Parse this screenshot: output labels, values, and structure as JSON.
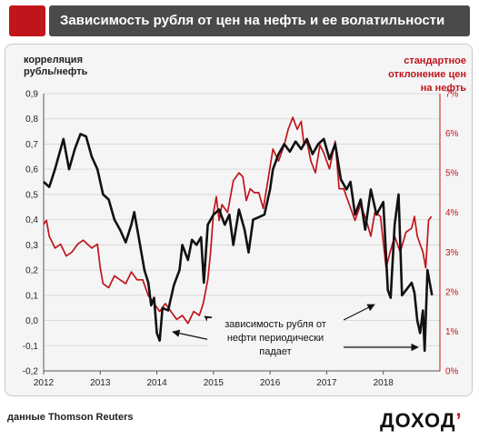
{
  "header": {
    "title": "Зависимость рубля от цен на нефть и ее волатильности"
  },
  "left_axis_label": [
    "корреляция",
    "рубль/нефть"
  ],
  "right_axis_label": [
    "стандартное",
    "отклонение цен",
    "на нефть"
  ],
  "annotation": [
    "зависимость  рубля от",
    "нефти периодически",
    "падает"
  ],
  "source": "данные Thomson Reuters",
  "logo": {
    "text": "ДОХОД",
    "mark": "’"
  },
  "colors": {
    "correlation": "#111111",
    "volatility": "#c0151b",
    "header_bg": "#4a4a4a",
    "accent": "#c0151b"
  },
  "chart_data": {
    "type": "line",
    "x_ticks": [
      "2012",
      "2013",
      "2014",
      "2015",
      "2016",
      "2017",
      "2018"
    ],
    "xlim": [
      2012,
      2019
    ],
    "left_axis": {
      "ylim": [
        -0.2,
        0.9
      ],
      "ticks": [
        "-0,2",
        "-0,1",
        "0,0",
        "0,1",
        "0,2",
        "0,3",
        "0,4",
        "0,5",
        "0,6",
        "0,7",
        "0,8",
        "0,9"
      ]
    },
    "right_axis": {
      "ylim": [
        0,
        7
      ],
      "ticks": [
        "0%",
        "1%",
        "2%",
        "3%",
        "4%",
        "5%",
        "6%",
        "7%"
      ]
    },
    "grid": "horizontal",
    "series": [
      {
        "axis": "left",
        "color": "#111111",
        "points": [
          [
            2012.0,
            0.55
          ],
          [
            2012.1,
            0.53
          ],
          [
            2012.2,
            0.6
          ],
          [
            2012.35,
            0.72
          ],
          [
            2012.45,
            0.6
          ],
          [
            2012.55,
            0.68
          ],
          [
            2012.65,
            0.74
          ],
          [
            2012.75,
            0.73
          ],
          [
            2012.85,
            0.65
          ],
          [
            2012.95,
            0.6
          ],
          [
            2013.05,
            0.5
          ],
          [
            2013.15,
            0.48
          ],
          [
            2013.25,
            0.4
          ],
          [
            2013.35,
            0.36
          ],
          [
            2013.45,
            0.31
          ],
          [
            2013.55,
            0.38
          ],
          [
            2013.6,
            0.43
          ],
          [
            2013.68,
            0.33
          ],
          [
            2013.78,
            0.2
          ],
          [
            2013.85,
            0.15
          ],
          [
            2013.9,
            0.06
          ],
          [
            2013.95,
            0.09
          ],
          [
            2014.0,
            -0.05
          ],
          [
            2014.05,
            -0.08
          ],
          [
            2014.1,
            0.05
          ],
          [
            2014.2,
            0.04
          ],
          [
            2014.3,
            0.14
          ],
          [
            2014.4,
            0.2
          ],
          [
            2014.45,
            0.3
          ],
          [
            2014.55,
            0.24
          ],
          [
            2014.62,
            0.32
          ],
          [
            2014.7,
            0.3
          ],
          [
            2014.78,
            0.33
          ],
          [
            2014.83,
            0.15
          ],
          [
            2014.9,
            0.38
          ],
          [
            2015.0,
            0.42
          ],
          [
            2015.1,
            0.44
          ],
          [
            2015.2,
            0.38
          ],
          [
            2015.28,
            0.42
          ],
          [
            2015.35,
            0.3
          ],
          [
            2015.45,
            0.44
          ],
          [
            2015.55,
            0.36
          ],
          [
            2015.62,
            0.27
          ],
          [
            2015.7,
            0.4
          ],
          [
            2015.8,
            0.41
          ],
          [
            2015.9,
            0.42
          ],
          [
            2016.0,
            0.52
          ],
          [
            2016.05,
            0.6
          ],
          [
            2016.15,
            0.66
          ],
          [
            2016.25,
            0.7
          ],
          [
            2016.35,
            0.67
          ],
          [
            2016.45,
            0.71
          ],
          [
            2016.55,
            0.68
          ],
          [
            2016.65,
            0.72
          ],
          [
            2016.75,
            0.66
          ],
          [
            2016.85,
            0.7
          ],
          [
            2016.95,
            0.72
          ],
          [
            2017.05,
            0.64
          ],
          [
            2017.15,
            0.7
          ],
          [
            2017.25,
            0.56
          ],
          [
            2017.35,
            0.52
          ],
          [
            2017.42,
            0.55
          ],
          [
            2017.5,
            0.42
          ],
          [
            2017.6,
            0.48
          ],
          [
            2017.68,
            0.36
          ],
          [
            2017.78,
            0.52
          ],
          [
            2017.88,
            0.42
          ],
          [
            2018.0,
            0.47
          ],
          [
            2018.08,
            0.12
          ],
          [
            2018.13,
            0.09
          ],
          [
            2018.2,
            0.38
          ],
          [
            2018.27,
            0.5
          ],
          [
            2018.33,
            0.1
          ],
          [
            2018.4,
            0.12
          ],
          [
            2018.5,
            0.15
          ],
          [
            2018.55,
            0.11
          ],
          [
            2018.6,
            0.0
          ],
          [
            2018.65,
            -0.05
          ],
          [
            2018.7,
            0.04
          ],
          [
            2018.73,
            -0.12
          ],
          [
            2018.78,
            0.2
          ],
          [
            2018.82,
            0.15
          ],
          [
            2018.86,
            0.1
          ]
        ]
      },
      {
        "axis": "right",
        "color": "#c0151b",
        "points": [
          [
            2012.0,
            3.7
          ],
          [
            2012.05,
            3.8
          ],
          [
            2012.1,
            3.4
          ],
          [
            2012.2,
            3.1
          ],
          [
            2012.3,
            3.2
          ],
          [
            2012.4,
            2.9
          ],
          [
            2012.5,
            3.0
          ],
          [
            2012.6,
            3.2
          ],
          [
            2012.7,
            3.3
          ],
          [
            2012.85,
            3.1
          ],
          [
            2012.95,
            3.2
          ],
          [
            2013.0,
            2.6
          ],
          [
            2013.05,
            2.2
          ],
          [
            2013.15,
            2.1
          ],
          [
            2013.25,
            2.4
          ],
          [
            2013.35,
            2.3
          ],
          [
            2013.45,
            2.2
          ],
          [
            2013.55,
            2.5
          ],
          [
            2013.65,
            2.3
          ],
          [
            2013.75,
            2.3
          ],
          [
            2013.85,
            1.9
          ],
          [
            2013.95,
            1.7
          ],
          [
            2014.05,
            1.5
          ],
          [
            2014.15,
            1.7
          ],
          [
            2014.25,
            1.5
          ],
          [
            2014.35,
            1.3
          ],
          [
            2014.45,
            1.4
          ],
          [
            2014.55,
            1.2
          ],
          [
            2014.65,
            1.5
          ],
          [
            2014.75,
            1.4
          ],
          [
            2014.82,
            1.7
          ],
          [
            2014.9,
            2.3
          ],
          [
            2014.95,
            3.0
          ],
          [
            2015.0,
            4.0
          ],
          [
            2015.05,
            4.4
          ],
          [
            2015.1,
            3.8
          ],
          [
            2015.15,
            4.2
          ],
          [
            2015.25,
            4.0
          ],
          [
            2015.35,
            4.8
          ],
          [
            2015.45,
            5.0
          ],
          [
            2015.52,
            4.9
          ],
          [
            2015.58,
            4.3
          ],
          [
            2015.65,
            4.6
          ],
          [
            2015.72,
            4.5
          ],
          [
            2015.8,
            4.5
          ],
          [
            2015.88,
            4.1
          ],
          [
            2015.95,
            4.7
          ],
          [
            2016.05,
            5.6
          ],
          [
            2016.15,
            5.3
          ],
          [
            2016.25,
            5.7
          ],
          [
            2016.32,
            6.1
          ],
          [
            2016.4,
            6.4
          ],
          [
            2016.48,
            6.1
          ],
          [
            2016.55,
            6.3
          ],
          [
            2016.6,
            5.7
          ],
          [
            2016.65,
            5.8
          ],
          [
            2016.72,
            5.3
          ],
          [
            2016.8,
            5.0
          ],
          [
            2016.88,
            5.7
          ],
          [
            2016.95,
            5.5
          ],
          [
            2017.05,
            5.1
          ],
          [
            2017.15,
            5.8
          ],
          [
            2017.22,
            4.6
          ],
          [
            2017.3,
            4.6
          ],
          [
            2017.4,
            4.2
          ],
          [
            2017.5,
            3.8
          ],
          [
            2017.6,
            4.2
          ],
          [
            2017.7,
            3.8
          ],
          [
            2017.78,
            3.4
          ],
          [
            2017.85,
            4.0
          ],
          [
            2017.95,
            3.9
          ],
          [
            2018.05,
            2.6
          ],
          [
            2018.12,
            3.0
          ],
          [
            2018.2,
            3.4
          ],
          [
            2018.3,
            3.0
          ],
          [
            2018.4,
            3.5
          ],
          [
            2018.5,
            3.6
          ],
          [
            2018.55,
            3.9
          ],
          [
            2018.6,
            3.4
          ],
          [
            2018.7,
            3.0
          ],
          [
            2018.75,
            2.6
          ],
          [
            2018.8,
            3.8
          ],
          [
            2018.85,
            3.9
          ]
        ]
      }
    ]
  }
}
